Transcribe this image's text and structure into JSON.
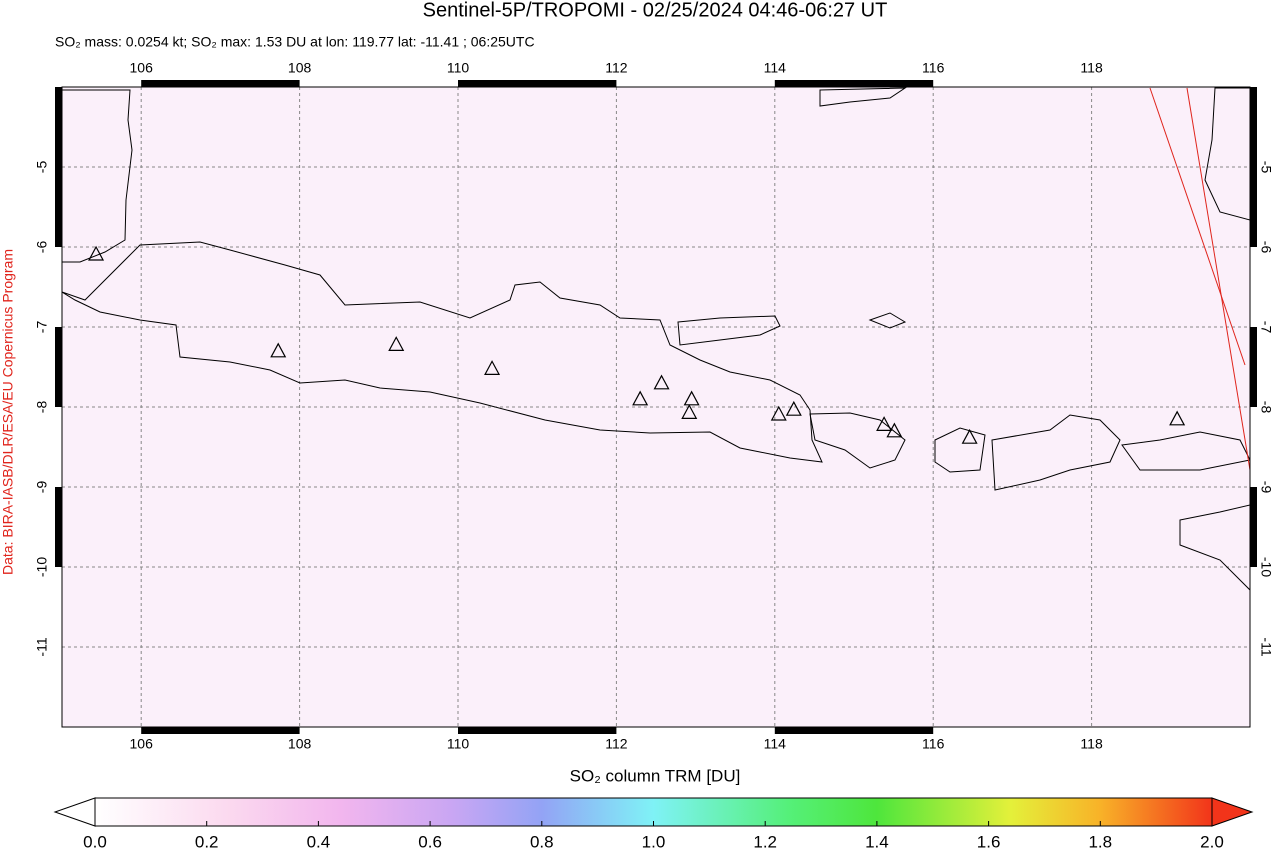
{
  "chart_data": {
    "type": "map",
    "title": "Sentinel-5P/TROPOMI - 02/25/2024 04:46-06:27 UT",
    "subtitle": "SO₂ mass: 0.0254 kt; SO₂ max: 1.53 DU at lon: 119.77 lat: -11.41 ; 06:25UTC",
    "credit": "Data: BIRA-IASB/DLR/ESA/EU Copernicus Program",
    "xlim": [
      105,
      120
    ],
    "ylim": [
      -12,
      -4
    ],
    "xticks": [
      106,
      108,
      110,
      112,
      114,
      116,
      118
    ],
    "yticks": [
      -5,
      -6,
      -7,
      -8,
      -9,
      -10,
      -11
    ],
    "grid": true,
    "volcanoes": {
      "lon": [
        105.43,
        107.73,
        109.22,
        110.43,
        112.3,
        112.57,
        112.95,
        112.92,
        114.05,
        114.24,
        115.38,
        115.51,
        116.46,
        119.08
      ],
      "lat": [
        -6.1,
        -7.31,
        -7.23,
        -7.53,
        -7.91,
        -7.71,
        -7.91,
        -8.08,
        -8.1,
        -8.04,
        -8.23,
        -8.31,
        -8.39,
        -8.16
      ]
    },
    "colorbar": {
      "label": "SO₂ column TRM [DU]",
      "lim": [
        0,
        2
      ],
      "ticks": [
        {
          "value": 0,
          "label": "0.0"
        },
        0.2,
        0.4,
        0.6,
        0.8,
        {
          "value": 1,
          "label": "1.0"
        },
        1.2,
        1.4,
        1.6,
        1.8,
        {
          "value": 2,
          "label": "2.0"
        }
      ]
    }
  }
}
